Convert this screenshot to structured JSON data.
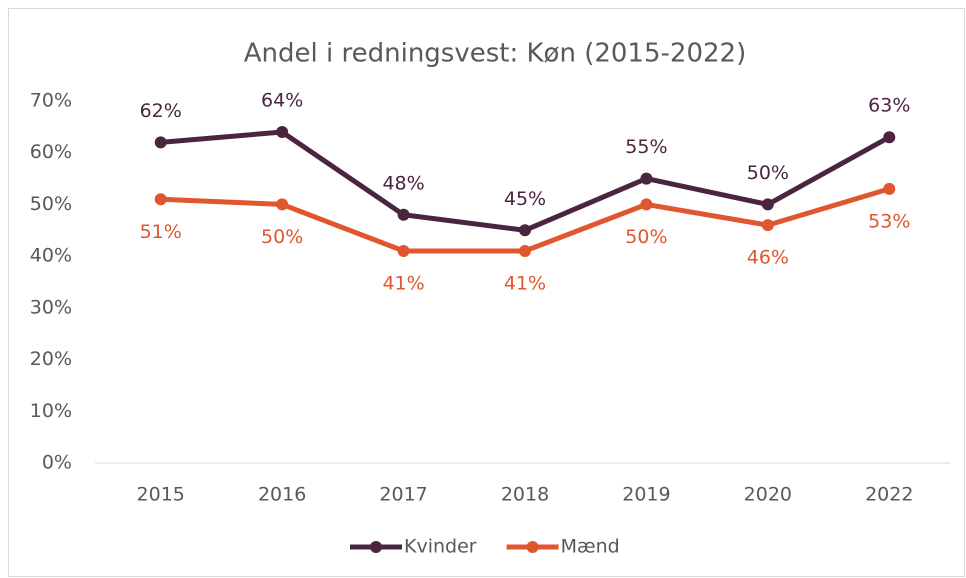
{
  "chart_data": {
    "type": "line",
    "title": "Andel i redningsvest: Køn (2015-2022)",
    "categories": [
      "2015",
      "2016",
      "2017",
      "2018",
      "2019",
      "2020",
      "2022"
    ],
    "series": [
      {
        "name": "Kvinder",
        "color": "#4b2540",
        "values": [
          62,
          64,
          48,
          45,
          55,
          50,
          63
        ],
        "value_labels": [
          "62%",
          "64%",
          "48%",
          "45%",
          "55%",
          "50%",
          "63%"
        ]
      },
      {
        "name": "Mænd",
        "color": "#e0562e",
        "values": [
          51,
          50,
          41,
          41,
          50,
          46,
          53
        ],
        "value_labels": [
          "51%",
          "50%",
          "41%",
          "41%",
          "50%",
          "46%",
          "53%"
        ]
      }
    ],
    "ylim": [
      0,
      70
    ],
    "yticks": [
      {
        "value": 0,
        "label": "0%"
      },
      {
        "value": 10,
        "label": "10%"
      },
      {
        "value": 20,
        "label": "20%"
      },
      {
        "value": 30,
        "label": "30%"
      },
      {
        "value": 40,
        "label": "40%"
      },
      {
        "value": 50,
        "label": "50%"
      },
      {
        "value": 60,
        "label": "60%"
      },
      {
        "value": 70,
        "label": "70%"
      }
    ],
    "grid": false,
    "legend": "bottom"
  }
}
